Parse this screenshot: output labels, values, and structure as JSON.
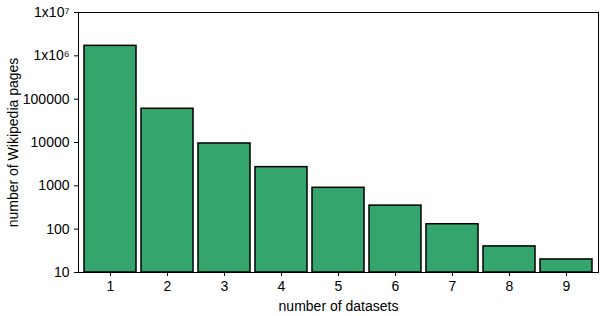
{
  "chart_data": {
    "type": "bar",
    "x_label": "number of datasets",
    "y_label": "number of Wikipedia pages",
    "categories": [
      "1",
      "2",
      "3",
      "4",
      "5",
      "6",
      "7",
      "8",
      "9"
    ],
    "values": [
      1700000,
      60000,
      9500,
      2700,
      900,
      350,
      130,
      40,
      20
    ],
    "color": "#35a56e",
    "log": "y",
    "ylim": [
      10,
      10000000
    ],
    "yticks": [
      10,
      100,
      1000,
      10000,
      100000,
      {
        "value": 1000000,
        "label": "1x10⁶"
      },
      {
        "value": 10000000,
        "label": "1x10⁷"
      }
    ],
    "grid": false
  }
}
